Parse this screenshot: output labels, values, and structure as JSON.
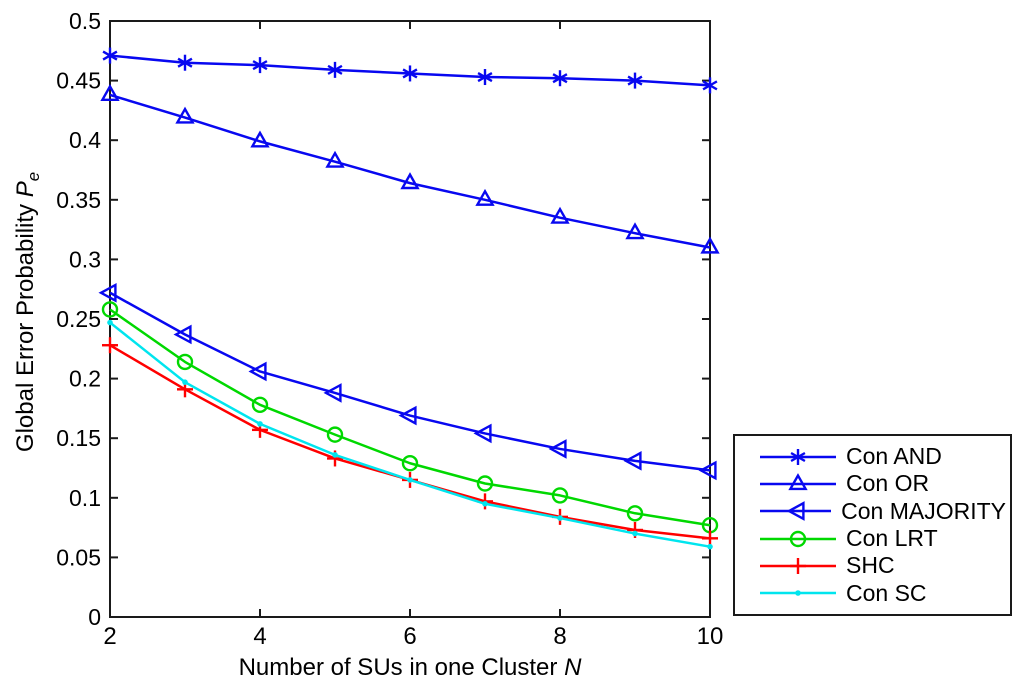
{
  "figure": {
    "background": "#ffffff",
    "axis_color": "#1a1a1a"
  },
  "chart_data": {
    "type": "line",
    "title": "",
    "xlabel_text": "Number of SUs in one Cluster",
    "xlabel_symbol": "N",
    "ylabel_text": "Global Error Probability",
    "ylabel_symbol": "P",
    "ylabel_subscript": "e",
    "xlim": [
      2,
      10
    ],
    "ylim": [
      0,
      0.5
    ],
    "xticks": [
      2,
      4,
      6,
      8,
      10
    ],
    "xtick_labels": [
      "2",
      "4",
      "6",
      "8",
      "10"
    ],
    "yticks": [
      0,
      0.05,
      0.1,
      0.15,
      0.2,
      0.25,
      0.3,
      0.35,
      0.4,
      0.45,
      0.5
    ],
    "ytick_labels": [
      "0",
      "0.05",
      "0.1",
      "0.15",
      "0.2",
      "0.25",
      "0.3",
      "0.35",
      "0.4",
      "0.45",
      "0.5"
    ],
    "grid": false,
    "legend_position": "outside-right-bottom",
    "x": [
      2,
      3,
      4,
      5,
      6,
      7,
      8,
      9,
      10
    ],
    "series": [
      {
        "name": "Con AND",
        "color": "#0808f0",
        "marker": "asterisk",
        "values": [
          0.471,
          0.465,
          0.463,
          0.459,
          0.456,
          0.453,
          0.452,
          0.45,
          0.446
        ]
      },
      {
        "name": "Con OR",
        "color": "#0808f0",
        "marker": "triangle-up",
        "values": [
          0.438,
          0.419,
          0.399,
          0.382,
          0.364,
          0.35,
          0.335,
          0.322,
          0.31
        ]
      },
      {
        "name": "Con MAJORITY",
        "color": "#0808f0",
        "marker": "triangle-left",
        "values": [
          0.272,
          0.237,
          0.206,
          0.188,
          0.169,
          0.154,
          0.141,
          0.131,
          0.123
        ]
      },
      {
        "name": "Con LRT",
        "color": "#00d800",
        "marker": "circle",
        "values": [
          0.258,
          0.214,
          0.178,
          0.153,
          0.129,
          0.112,
          0.102,
          0.087,
          0.077
        ]
      },
      {
        "name": "SHC",
        "color": "#ff0000",
        "marker": "plus",
        "values": [
          0.228,
          0.191,
          0.157,
          0.133,
          0.115,
          0.097,
          0.084,
          0.073,
          0.066
        ]
      },
      {
        "name": "Con SC",
        "color": "#00e5ee",
        "marker": "dot",
        "values": [
          0.247,
          0.197,
          0.162,
          0.136,
          0.115,
          0.095,
          0.083,
          0.07,
          0.059
        ]
      }
    ]
  }
}
